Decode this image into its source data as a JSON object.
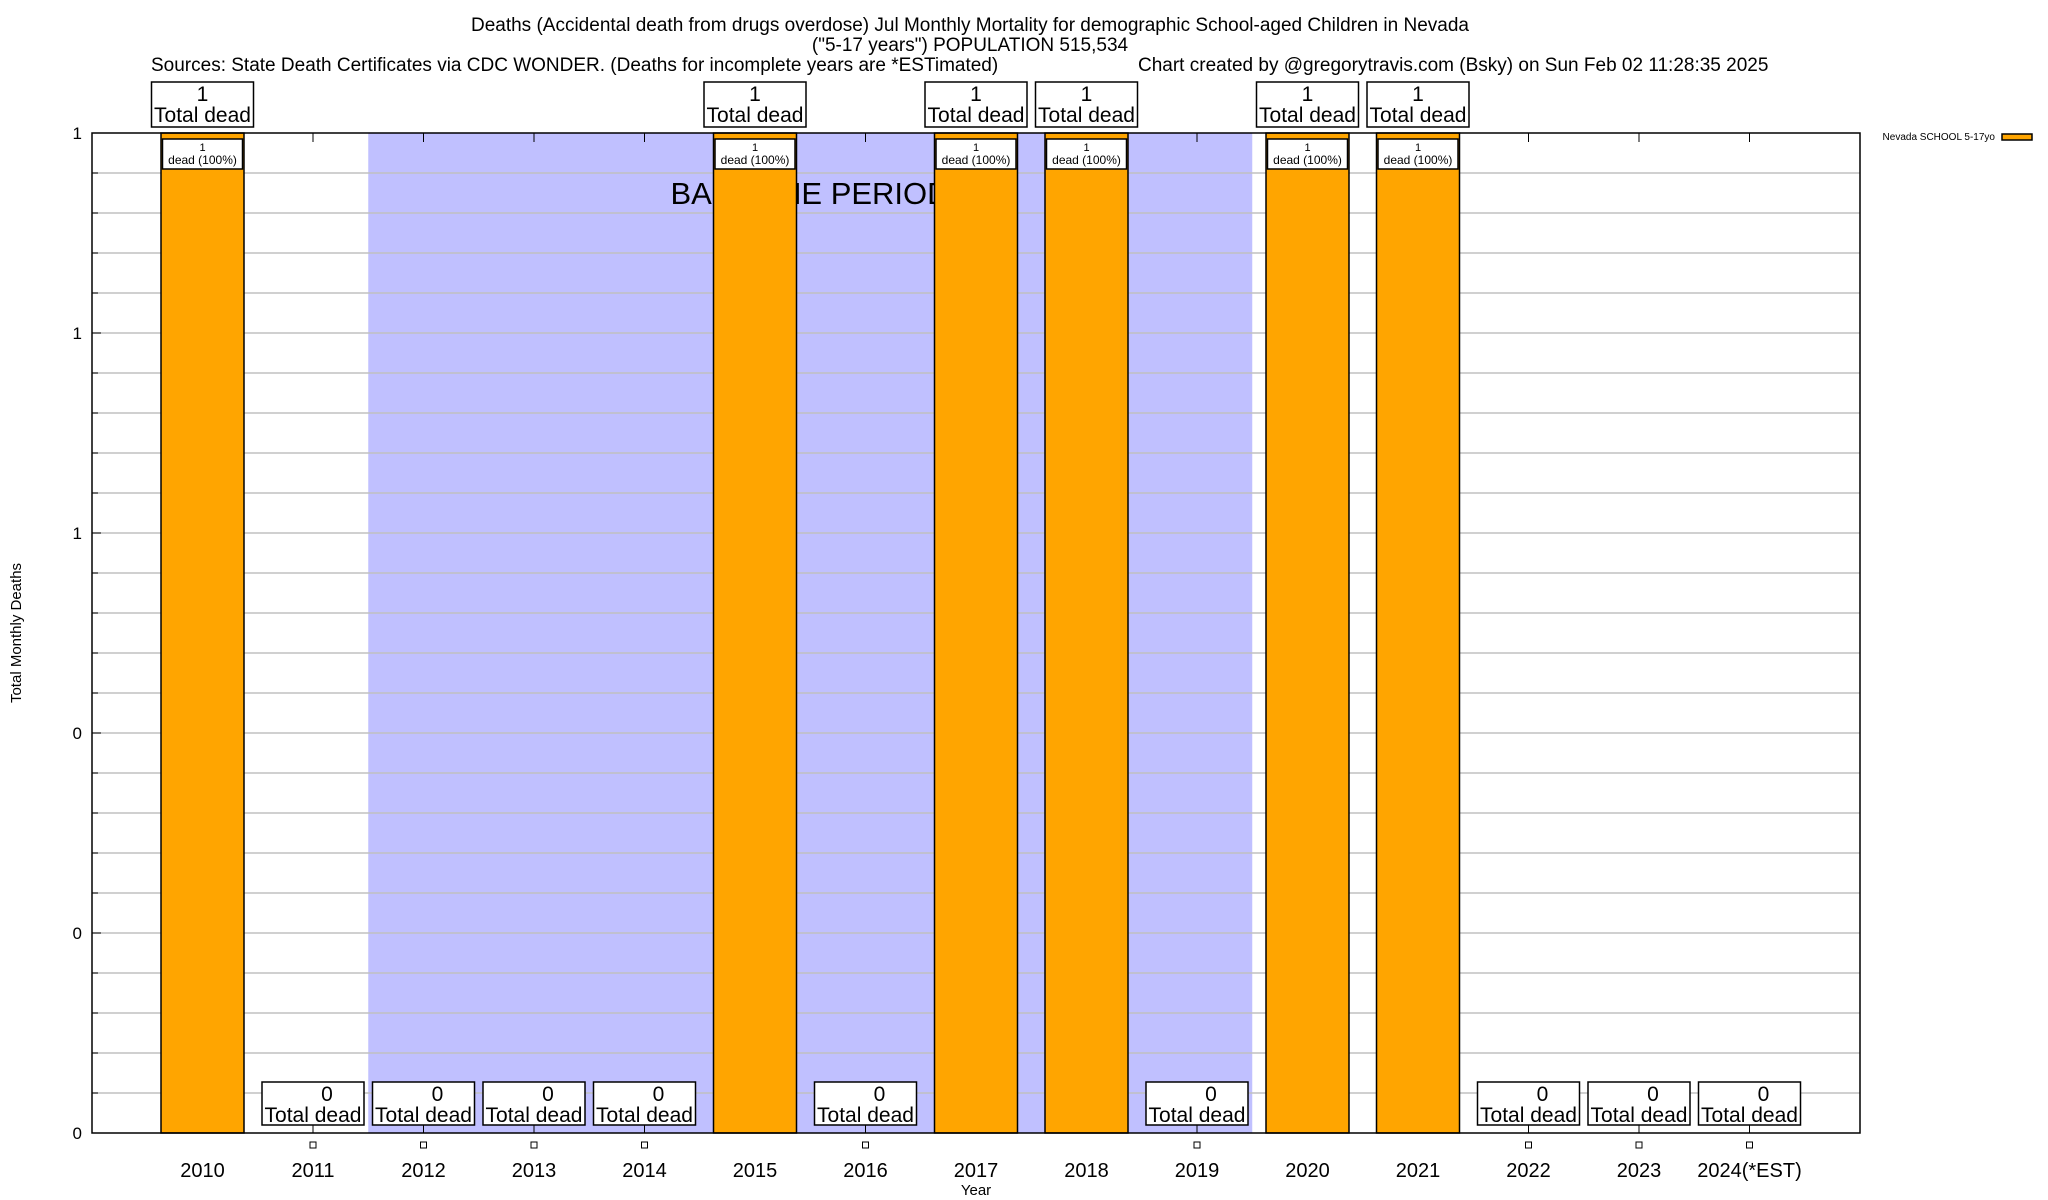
{
  "chart_data": {
    "type": "bar",
    "title_lines": [
      "Deaths (Accidental death from drugs overdose) Jul Monthly Mortality for demographic School-aged Children in Nevada",
      "(\"5-17 years\") POPULATION 515,534"
    ],
    "sources": "Sources: State Death Certificates via CDC WONDER. (Deaths for incomplete years are *ESTimated)",
    "credit": "Chart created by @gregorytravis.com (Bsky) on Sun Feb 02 11:28:35 2025",
    "xlabel": "Year",
    "ylabel": "Total Monthly Deaths",
    "ylim": [
      0,
      1
    ],
    "y_tick_labels": [
      "0",
      "0",
      "0",
      "1",
      "1",
      "1"
    ],
    "grid": true,
    "legend_placement": "top-right",
    "categories": [
      "2010",
      "2011",
      "2012",
      "2013",
      "2014",
      "2015",
      "2016",
      "2017",
      "2018",
      "2019",
      "2020",
      "2021",
      "2022",
      "2023",
      "2024(*EST)"
    ],
    "series": [
      {
        "name": "Nevada SCHOOL 5-17yo",
        "color": "#ffa500",
        "values": [
          1,
          0,
          0,
          0,
          0,
          1,
          0,
          1,
          1,
          0,
          1,
          1,
          0,
          0,
          0
        ]
      }
    ],
    "total_label": "Total dead",
    "bar_label_suffix": "dead (100%)",
    "baseline": {
      "label": "BASELINE PERIOD",
      "from": "2012",
      "to": "2019",
      "color": "#c0c0ff"
    }
  }
}
